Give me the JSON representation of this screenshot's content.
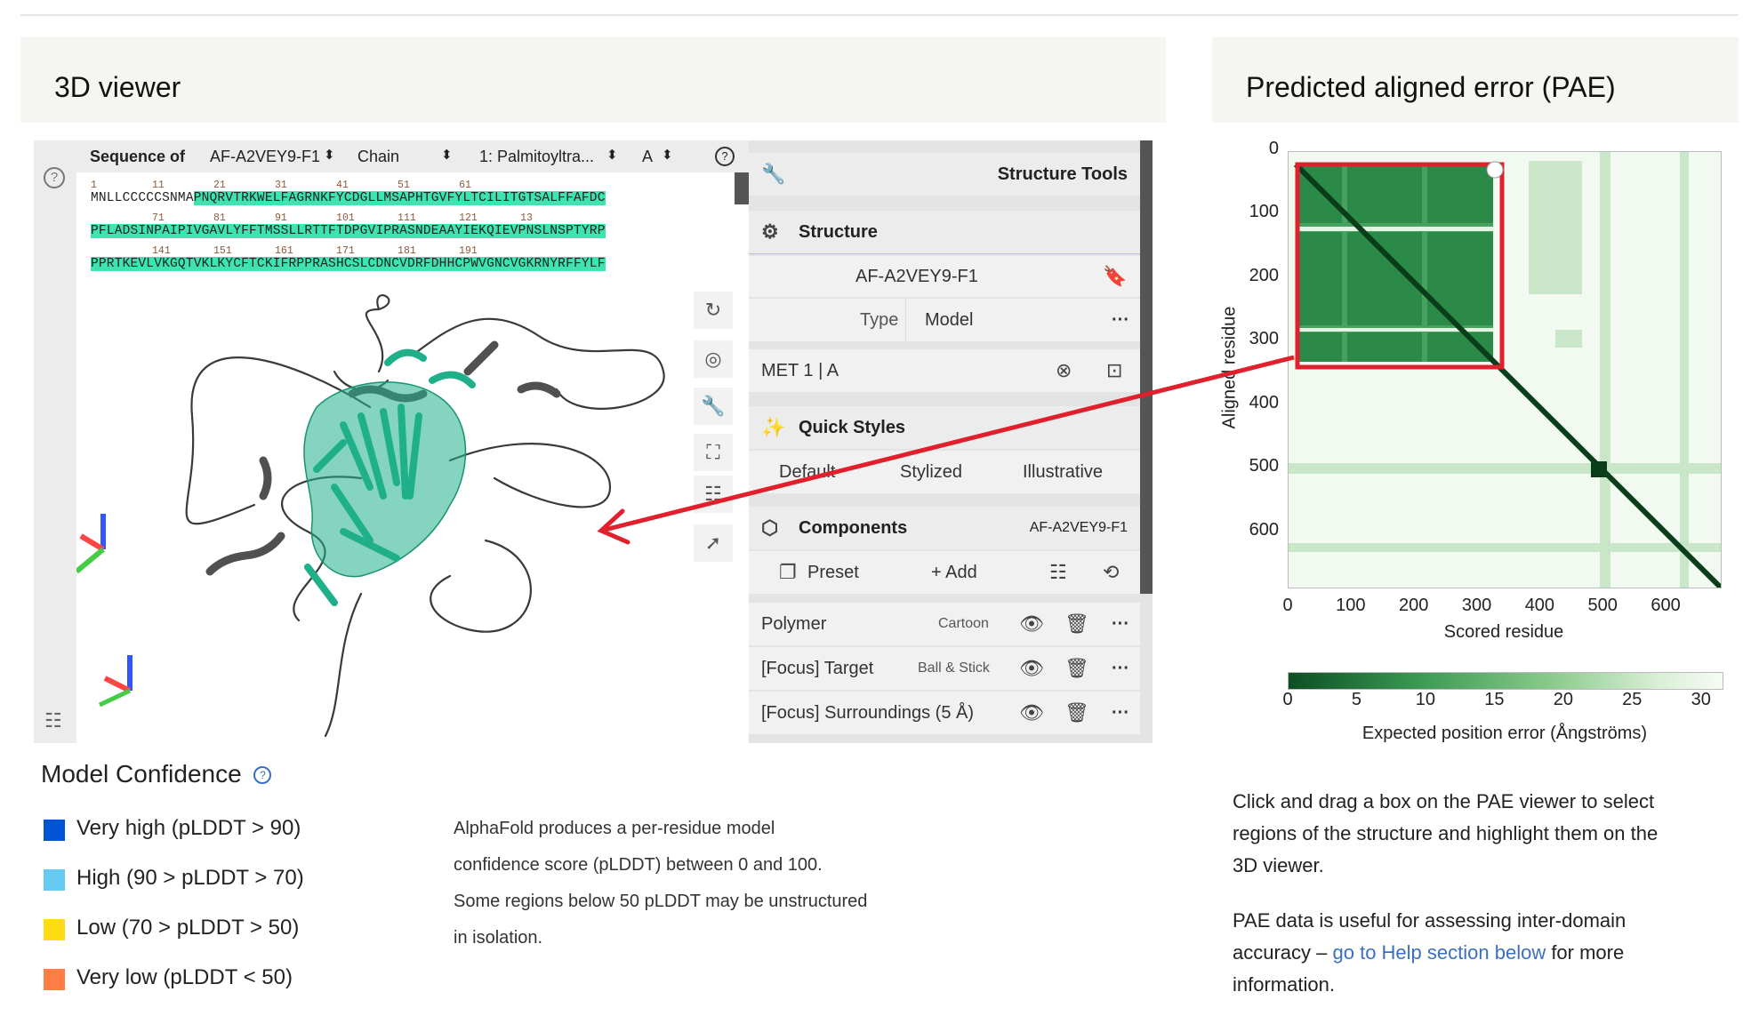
{
  "left_section": {
    "title": "3D viewer"
  },
  "right_section": {
    "title": "Predicted aligned error (PAE)"
  },
  "sequence_bar": {
    "label": "Sequence of",
    "entry": "AF-A2VEY9-F1",
    "chain_label": "Chain",
    "entity": "1: Palmitoyltra...",
    "chain": "A",
    "lines": [
      {
        "numbers": "1         11        21        31        41        51        61",
        "plain": "MNLLCCCCCSNMA",
        "hl": "PNQRVTRKWELFAGRNKFYCDGLLMSAPHTGVFYLTCILITGTSALFFAFDC"
      },
      {
        "numbers": "          71        81        91        101       111       121       13",
        "plain": "",
        "hl": "PFLADSINPAIPIVGAVLYFFTMSSLLRTTFTDPGVIPRASNDEAAYIEKQIEVPNSLNSPTYRP"
      },
      {
        "numbers": "          141       151       161       171       181       191",
        "plain": "",
        "hl": "PPRTKEVLVKGQTVKLKYCFTCKIFRPPRASHCSLCDNCVDRFDHHCPWVGNCVGKRNYRFFYLF"
      }
    ]
  },
  "structure_tools": {
    "title": "Structure Tools",
    "structure_heading": "Structure",
    "structure_id": "AF-A2VEY9-F1",
    "type_label": "Type",
    "type_value": "Model",
    "focus_residue": "MET 1 | A",
    "quick_styles_heading": "Quick Styles",
    "styles": [
      "Default",
      "Stylized",
      "Illustrative"
    ],
    "components_heading": "Components",
    "components_entry": "AF-A2VEY9-F1",
    "preset_label": "Preset",
    "add_label": "+ Add",
    "components": [
      {
        "name": "Polymer",
        "repr": "Cartoon"
      },
      {
        "name": "[Focus] Target",
        "repr": "Ball & Stick"
      },
      {
        "name": "[Focus] Surroundings (5 Å)",
        "repr": ""
      }
    ]
  },
  "confidence": {
    "title": "Model Confidence",
    "items": [
      {
        "label": "Very high (pLDDT > 90)",
        "color": "#0053d6"
      },
      {
        "label": "High (90 > pLDDT > 70)",
        "color": "#65cbf3"
      },
      {
        "label": "Low (70 > pLDDT > 50)",
        "color": "#ffdb13"
      },
      {
        "label": "Very low (pLDDT < 50)",
        "color": "#ff7d45"
      }
    ],
    "description": [
      "AlphaFold produces a per-residue model",
      "confidence score (pLDDT) between 0 and 100.",
      "Some regions below 50 pLDDT may be unstructured",
      "in isolation."
    ]
  },
  "pae": {
    "ylabel": "Aligned residue",
    "xlabel": "Scored residue",
    "ticks": [
      "0",
      "100",
      "200",
      "300",
      "400",
      "500",
      "600"
    ],
    "colorbar_ticks": [
      "0",
      "5",
      "10",
      "15",
      "20",
      "25",
      "30"
    ],
    "colorbar_label": "Expected position error (Ångströms)",
    "help1": [
      "Click and drag a box on the PAE viewer to select",
      "regions of the structure and highlight them on the",
      "3D viewer."
    ],
    "help2_a": "PAE data is useful for assessing inter-domain",
    "help2_b": "accuracy – ",
    "help2_link": "go to Help section below",
    "help2_c": " for more",
    "help2_d": "information.",
    "accent_color": "#e0202c"
  }
}
